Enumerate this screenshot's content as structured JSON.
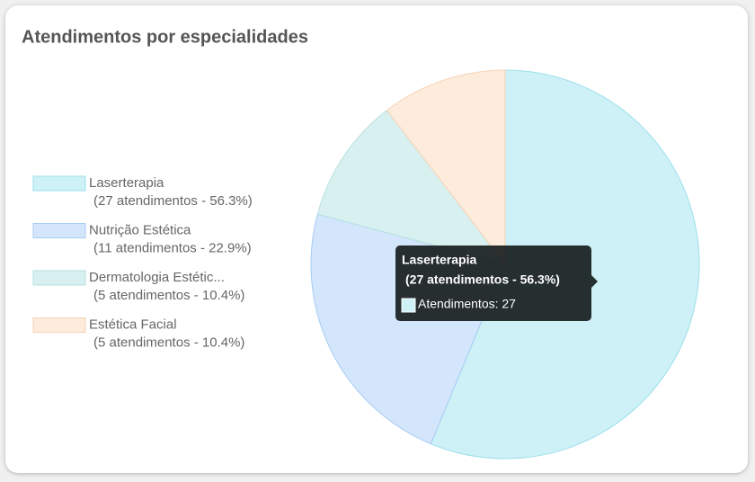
{
  "chart_data": {
    "type": "pie",
    "title": "Atendimentos por especialidades",
    "categories": [
      "Laserterapia",
      "Nutrição Estética",
      "Dermatologia Estétic...",
      "Estética Facial"
    ],
    "values": [
      27,
      11,
      5,
      5
    ],
    "value_labels": [
      "(27 atendimentos - 56.3%)",
      "(11 atendimentos - 22.9%)",
      "(5 atendimentos - 10.4%)",
      "(5 atendimentos - 10.4%)"
    ],
    "colors": [
      "#cdf1f6",
      "#d3e6fb",
      "#d9f0f0",
      "#fdebdb"
    ],
    "borders": [
      "#9ddfec",
      "#a9cdf3",
      "#b6e0e0",
      "#f5d3b6"
    ],
    "legend": "left",
    "tooltip_label": "Atendimentos: 27"
  }
}
